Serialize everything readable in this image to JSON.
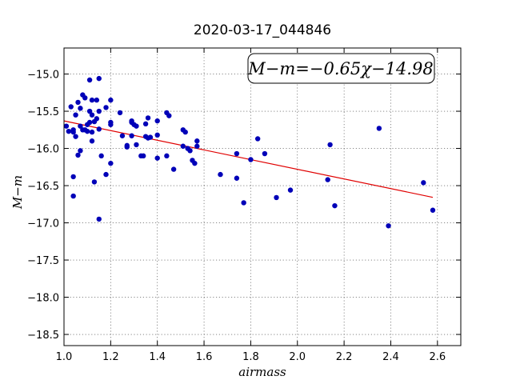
{
  "chart_data": {
    "type": "scatter",
    "title": "2020-03-17_044846",
    "xlabel": "airmass",
    "ylabel": "M−m",
    "xlim": [
      1.0,
      2.7
    ],
    "ylim": [
      -18.65,
      -14.65
    ],
    "y_inverted": true,
    "grid": true,
    "x_ticks": [
      1.0,
      1.2,
      1.4,
      1.6,
      1.8,
      2.0,
      2.2,
      2.4,
      2.6
    ],
    "x_tick_labels": [
      "1.0",
      "1.2",
      "1.4",
      "1.6",
      "1.8",
      "2.0",
      "2.2",
      "2.4",
      "2.6"
    ],
    "y_ticks": [
      -15.0,
      -15.5,
      -16.0,
      -16.5,
      -17.0,
      -17.5,
      -18.0,
      -18.5
    ],
    "y_tick_labels": [
      "−15.0",
      "−15.5",
      "−16.0",
      "−16.5",
      "−17.0",
      "−17.5",
      "−18.0",
      "−18.5"
    ],
    "annotation": "M−m=−0.65χ−14.98",
    "fit": {
      "slope": -0.65,
      "intercept": -14.98,
      "x_range": [
        1.0,
        2.58
      ],
      "color": "#e00000"
    },
    "marker_color": "#0000b8",
    "points": [
      [
        1.01,
        -15.7
      ],
      [
        1.02,
        -15.77
      ],
      [
        1.03,
        -15.44
      ],
      [
        1.04,
        -15.75
      ],
      [
        1.04,
        -15.78
      ],
      [
        1.04,
        -16.38
      ],
      [
        1.04,
        -16.64
      ],
      [
        1.05,
        -15.55
      ],
      [
        1.05,
        -15.84
      ],
      [
        1.06,
        -16.09
      ],
      [
        1.06,
        -15.38
      ],
      [
        1.07,
        -15.46
      ],
      [
        1.07,
        -16.03
      ],
      [
        1.07,
        -15.7
      ],
      [
        1.08,
        -15.75
      ],
      [
        1.08,
        -15.28
      ],
      [
        1.09,
        -15.75
      ],
      [
        1.09,
        -15.32
      ],
      [
        1.1,
        -15.77
      ],
      [
        1.1,
        -15.68
      ],
      [
        1.11,
        -15.65
      ],
      [
        1.11,
        -15.5
      ],
      [
        1.11,
        -15.08
      ],
      [
        1.12,
        -15.78
      ],
      [
        1.12,
        -15.55
      ],
      [
        1.12,
        -15.9
      ],
      [
        1.12,
        -15.35
      ],
      [
        1.13,
        -15.64
      ],
      [
        1.13,
        -16.45
      ],
      [
        1.14,
        -15.35
      ],
      [
        1.14,
        -15.6
      ],
      [
        1.15,
        -15.74
      ],
      [
        1.15,
        -15.06
      ],
      [
        1.15,
        -15.5
      ],
      [
        1.15,
        -16.95
      ],
      [
        1.16,
        -16.1
      ],
      [
        1.18,
        -15.45
      ],
      [
        1.18,
        -16.35
      ],
      [
        1.2,
        -15.35
      ],
      [
        1.2,
        -15.65
      ],
      [
        1.2,
        -15.68
      ],
      [
        1.2,
        -16.2
      ],
      [
        1.24,
        -15.52
      ],
      [
        1.25,
        -15.83
      ],
      [
        1.27,
        -15.96
      ],
      [
        1.27,
        -15.98
      ],
      [
        1.29,
        -15.63
      ],
      [
        1.29,
        -15.65
      ],
      [
        1.29,
        -15.83
      ],
      [
        1.3,
        -15.68
      ],
      [
        1.31,
        -15.7
      ],
      [
        1.31,
        -15.95
      ],
      [
        1.33,
        -16.1
      ],
      [
        1.34,
        -16.1
      ],
      [
        1.35,
        -15.84
      ],
      [
        1.35,
        -15.67
      ],
      [
        1.36,
        -15.86
      ],
      [
        1.36,
        -15.59
      ],
      [
        1.37,
        -15.85
      ],
      [
        1.4,
        -15.63
      ],
      [
        1.4,
        -15.82
      ],
      [
        1.4,
        -16.13
      ],
      [
        1.44,
        -15.52
      ],
      [
        1.44,
        -16.1
      ],
      [
        1.45,
        -15.56
      ],
      [
        1.47,
        -16.28
      ],
      [
        1.51,
        -15.75
      ],
      [
        1.51,
        -15.97
      ],
      [
        1.52,
        -15.78
      ],
      [
        1.53,
        -16.0
      ],
      [
        1.54,
        -16.03
      ],
      [
        1.55,
        -16.16
      ],
      [
        1.56,
        -16.2
      ],
      [
        1.57,
        -15.9
      ],
      [
        1.57,
        -15.97
      ],
      [
        1.67,
        -16.35
      ],
      [
        1.74,
        -16.07
      ],
      [
        1.74,
        -16.4
      ],
      [
        1.77,
        -16.73
      ],
      [
        1.8,
        -16.15
      ],
      [
        1.83,
        -15.87
      ],
      [
        1.86,
        -16.07
      ],
      [
        1.91,
        -16.66
      ],
      [
        1.97,
        -16.56
      ],
      [
        2.13,
        -16.42
      ],
      [
        2.14,
        -15.95
      ],
      [
        2.16,
        -16.77
      ],
      [
        2.35,
        -15.73
      ],
      [
        2.39,
        -17.04
      ],
      [
        2.54,
        -16.46
      ],
      [
        2.58,
        -16.83
      ]
    ]
  }
}
